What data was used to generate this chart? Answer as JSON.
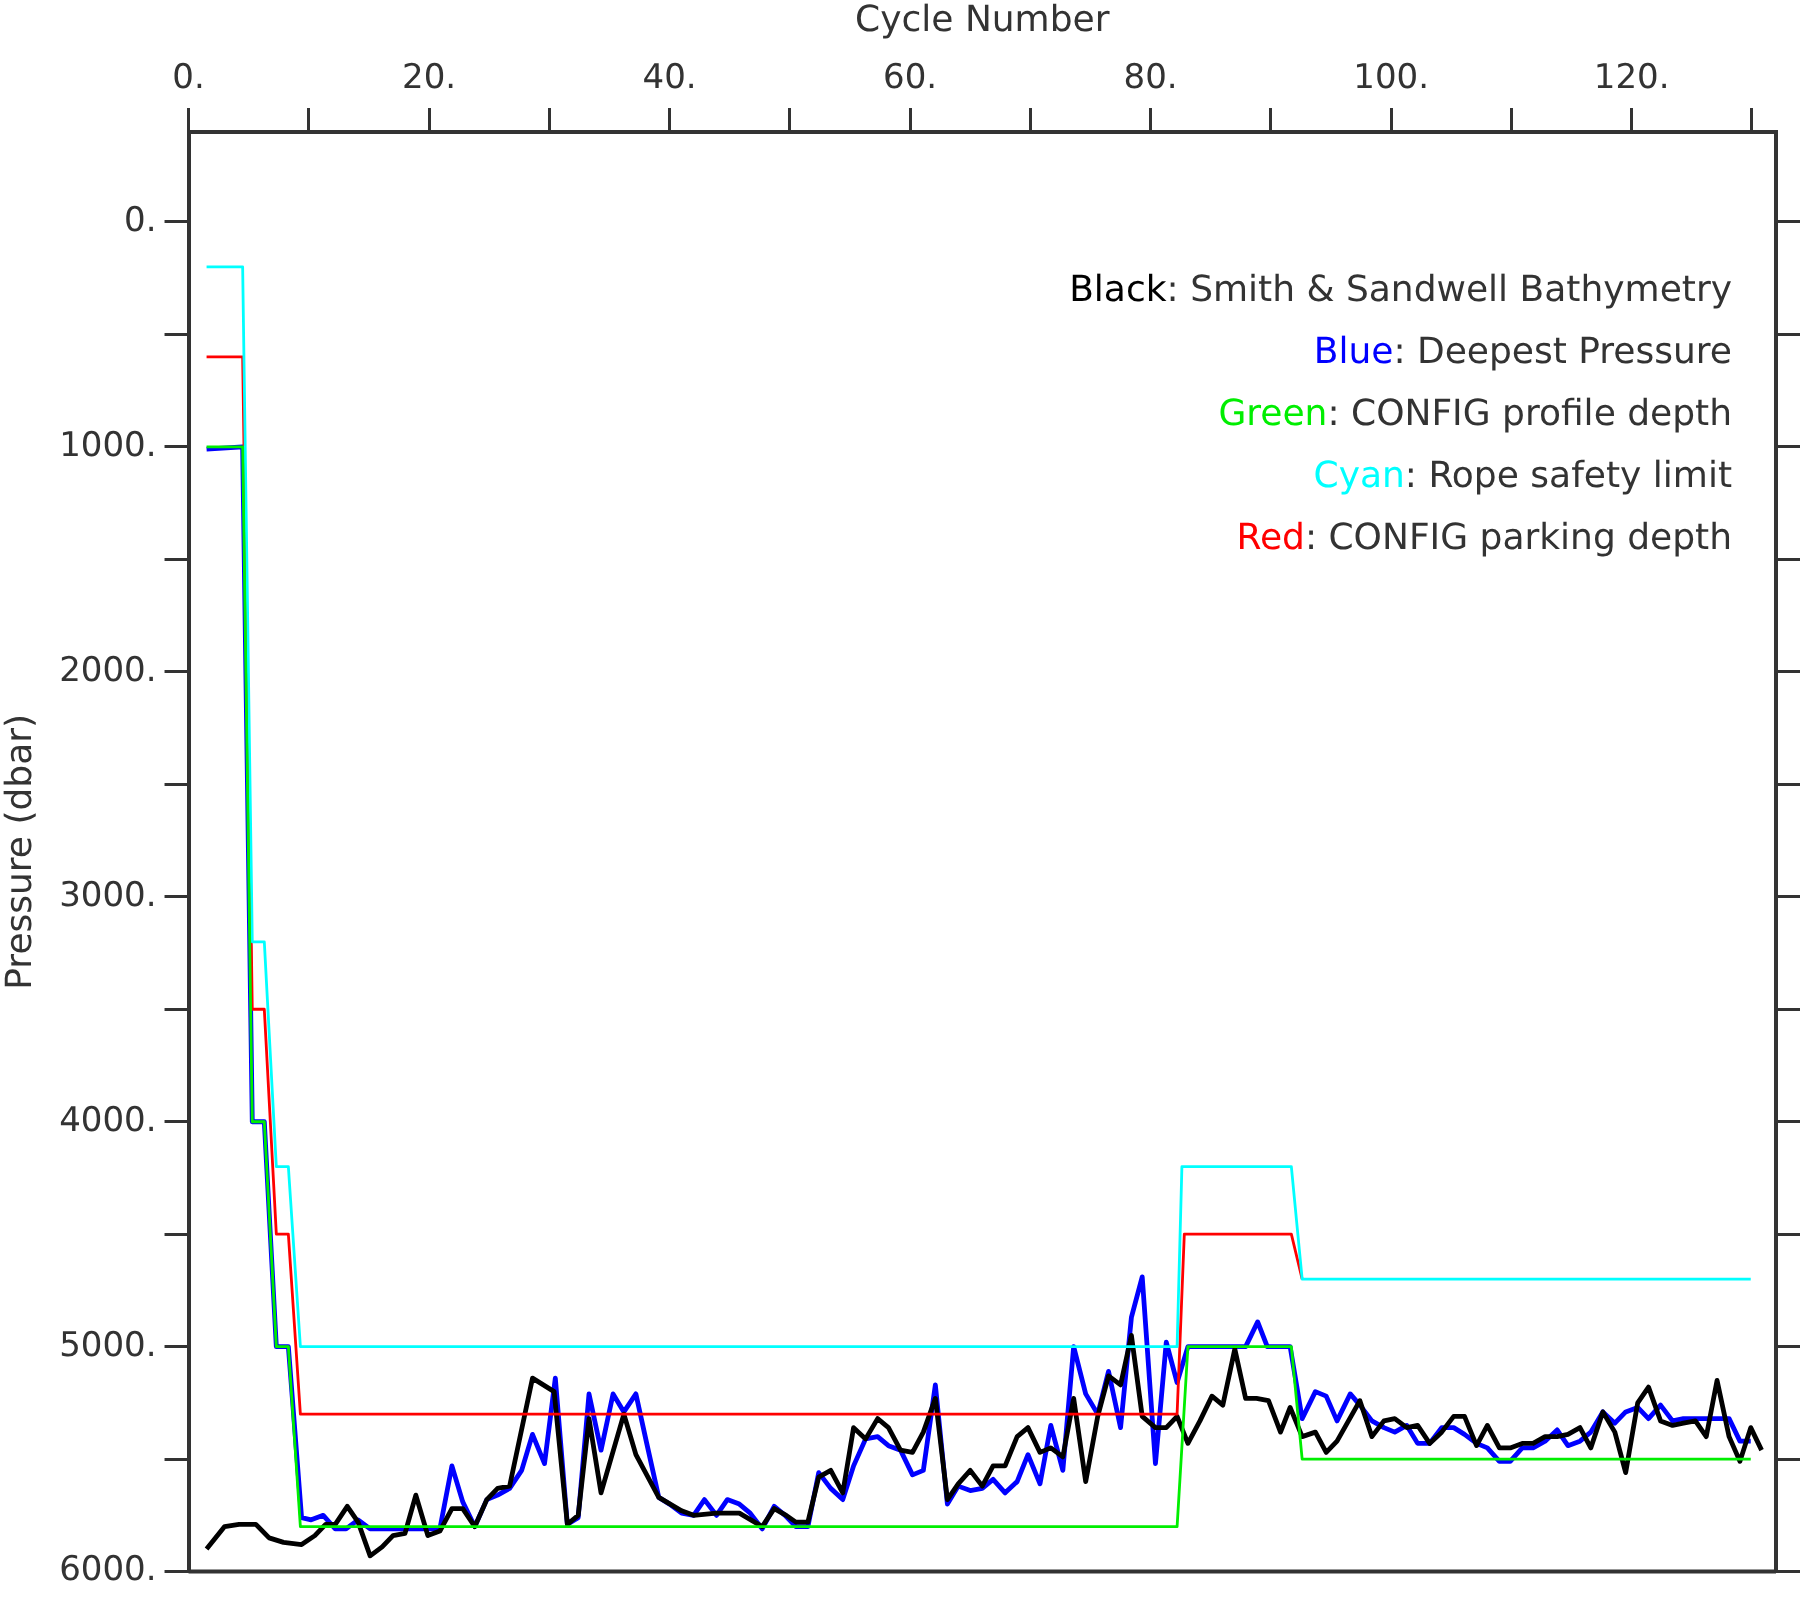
{
  "chart_data": {
    "type": "line",
    "xlabel": "Cycle Number",
    "ylabel": "Pressure (dbar)",
    "xlim": [
      0,
      132
    ],
    "ylim": [
      6000,
      -400
    ],
    "xticks": [
      {
        "value": 0,
        "label": "0."
      },
      {
        "value": 10,
        "label": null
      },
      {
        "value": 20,
        "label": "20."
      },
      {
        "value": 30,
        "label": null
      },
      {
        "value": 40,
        "label": "40."
      },
      {
        "value": 50,
        "label": null
      },
      {
        "value": 60,
        "label": "60."
      },
      {
        "value": 70,
        "label": null
      },
      {
        "value": 80,
        "label": "80."
      },
      {
        "value": 90,
        "label": null
      },
      {
        "value": 100,
        "label": "100."
      },
      {
        "value": 110,
        "label": null
      },
      {
        "value": 120,
        "label": "120."
      },
      {
        "value": 130,
        "label": null
      }
    ],
    "yticks": [
      {
        "value": 0,
        "label": "0."
      },
      {
        "value": 500,
        "label": null
      },
      {
        "value": 1000,
        "label": "1000."
      },
      {
        "value": 1500,
        "label": null
      },
      {
        "value": 2000,
        "label": "2000."
      },
      {
        "value": 2500,
        "label": null
      },
      {
        "value": 3000,
        "label": "3000."
      },
      {
        "value": 3500,
        "label": null
      },
      {
        "value": 4000,
        "label": "4000."
      },
      {
        "value": 4500,
        "label": null
      },
      {
        "value": 5000,
        "label": "5000."
      },
      {
        "value": 5500,
        "label": null
      },
      {
        "value": 6000,
        "label": "6000."
      }
    ],
    "grid": false,
    "legend": "top right",
    "series": [
      {
        "name": "Black: Smith & Sandwell Bathymetry",
        "color": "#000000",
        "x": [
          1.5,
          3,
          4.2,
          5.6,
          6.7,
          7.9,
          9.4,
          10.5,
          11.4,
          12.2,
          13.2,
          14.1,
          15.1,
          16.1,
          17.0,
          18.0,
          18.9,
          19.9,
          20.9,
          21.9,
          22.8,
          23.8,
          24.8,
          25.7,
          26.7,
          28.6,
          30.4,
          31.5,
          32.4,
          33.3,
          34.3,
          36.2,
          37.2,
          39.1,
          41.0,
          42.0,
          43.9,
          45.8,
          47.7,
          48.7,
          49.7,
          50.5,
          51.5,
          52.4,
          53.4,
          54.4,
          55.3,
          56.3,
          57.3,
          58.2,
          59.2,
          60.2,
          61.1,
          62.1,
          63.1,
          64.0,
          65.0,
          66.0,
          66.9,
          67.9,
          68.9,
          69.8,
          70.8,
          71.7,
          72.7,
          73.6,
          74.6,
          75.6,
          76.5,
          77.5,
          78.4,
          79.3,
          80.4,
          81.3,
          82.2,
          83.1,
          84.1,
          85.1,
          86.0,
          87.0,
          87.9,
          88.8,
          89.8,
          90.8,
          91.6,
          92.6,
          93.7,
          94.6,
          95.5,
          97.4,
          98.4,
          99.4,
          100.3,
          101.3,
          102.2,
          103.2,
          104.2,
          105.2,
          106.1,
          107.1,
          108.0,
          109.0,
          109.9,
          110.9,
          111.8,
          112.8,
          113.8,
          114.7,
          115.7,
          116.6,
          117.6,
          118.6,
          119.5,
          120.5,
          121.4,
          122.4,
          123.4,
          124.3,
          125.3,
          126.2,
          127.1,
          128.1,
          129.0,
          129.9,
          130.8
        ],
        "values": [
          5900,
          5800,
          5790,
          5790,
          5850,
          5870,
          5880,
          5840,
          5790,
          5790,
          5710,
          5780,
          5930,
          5890,
          5840,
          5830,
          5660,
          5840,
          5820,
          5720,
          5720,
          5800,
          5680,
          5630,
          5620,
          5140,
          5200,
          5790,
          5750,
          5320,
          5650,
          5300,
          5480,
          5670,
          5730,
          5750,
          5740,
          5740,
          5800,
          5720,
          5750,
          5780,
          5780,
          5580,
          5550,
          5650,
          5360,
          5410,
          5320,
          5360,
          5460,
          5470,
          5380,
          5230,
          5680,
          5610,
          5550,
          5620,
          5530,
          5530,
          5400,
          5360,
          5470,
          5450,
          5490,
          5230,
          5600,
          5310,
          5130,
          5170,
          4950,
          5310,
          5360,
          5360,
          5310,
          5430,
          5330,
          5220,
          5260,
          5010,
          5230,
          5230,
          5240,
          5380,
          5270,
          5400,
          5380,
          5470,
          5420,
          5240,
          5400,
          5330,
          5320,
          5360,
          5350,
          5430,
          5380,
          5310,
          5310,
          5440,
          5350,
          5450,
          5450,
          5430,
          5430,
          5400,
          5400,
          5390,
          5360,
          5450,
          5290,
          5380,
          5560,
          5250,
          5180,
          5330,
          5350,
          5340,
          5330,
          5400,
          5150,
          5400,
          5510,
          5360,
          5460
        ]
      },
      {
        "name": "Blue: Deepest Pressure",
        "color": "#0000ff",
        "x": [
          1.5,
          4.5,
          5.3,
          6.3,
          7.3,
          8.3,
          9.4,
          10.2,
          11.2,
          12.2,
          13.1,
          14.1,
          15.1,
          20.9,
          21.9,
          22.8,
          23.8,
          24.8,
          25.7,
          26.7,
          27.7,
          28.6,
          29.6,
          30.5,
          31.5,
          32.4,
          33.3,
          34.3,
          35.3,
          36.2,
          37.2,
          38.1,
          39.1,
          40.0,
          41.0,
          42.0,
          42.9,
          43.9,
          44.8,
          45.8,
          46.7,
          47.7,
          48.7,
          49.6,
          50.5,
          51.5,
          52.4,
          53.4,
          54.4,
          55.3,
          56.3,
          57.3,
          58.2,
          59.2,
          60.2,
          61.1,
          62.1,
          63.1,
          64.0,
          65.0,
          66.0,
          66.9,
          67.9,
          68.9,
          69.8,
          70.8,
          71.7,
          72.7,
          73.6,
          74.6,
          75.6,
          76.5,
          77.5,
          78.4,
          79.3,
          80.4,
          81.3,
          82.2,
          83.1,
          87.9,
          88.9,
          89.7,
          91.6,
          92.6,
          93.7,
          94.6,
          95.5,
          96.6,
          97.4,
          98.4,
          99.4,
          100.3,
          101.3,
          102.2,
          103.2,
          104.2,
          105.2,
          106.1,
          107.1,
          108.0,
          109.0,
          109.9,
          110.9,
          111.8,
          112.8,
          113.8,
          114.7,
          115.7,
          116.6,
          117.6,
          118.6,
          119.5,
          120.5,
          121.4,
          122.4,
          123.4,
          124.3,
          128.1,
          129.0,
          129.9
        ],
        "values": [
          1010,
          1000,
          4000,
          4000,
          5000,
          5000,
          5760,
          5770,
          5750,
          5810,
          5810,
          5770,
          5810,
          5810,
          5530,
          5690,
          5800,
          5680,
          5660,
          5630,
          5550,
          5390,
          5520,
          5140,
          5790,
          5760,
          5210,
          5460,
          5210,
          5290,
          5210,
          5430,
          5670,
          5700,
          5740,
          5750,
          5680,
          5750,
          5680,
          5700,
          5740,
          5810,
          5710,
          5750,
          5800,
          5800,
          5560,
          5630,
          5680,
          5530,
          5410,
          5400,
          5440,
          5460,
          5570,
          5550,
          5170,
          5700,
          5620,
          5640,
          5630,
          5590,
          5650,
          5600,
          5480,
          5610,
          5350,
          5550,
          5000,
          5210,
          5300,
          5110,
          5360,
          4870,
          4690,
          5520,
          4980,
          5160,
          5000,
          5000,
          4890,
          5000,
          5000,
          5320,
          5200,
          5220,
          5330,
          5210,
          5260,
          5330,
          5360,
          5380,
          5350,
          5430,
          5430,
          5360,
          5360,
          5390,
          5430,
          5450,
          5510,
          5510,
          5450,
          5450,
          5420,
          5370,
          5440,
          5420,
          5380,
          5290,
          5340,
          5290,
          5270,
          5320,
          5260,
          5330,
          5320,
          5320,
          5420,
          5420
        ]
      },
      {
        "name": "Green: CONFIG profile depth",
        "color": "#00ee00",
        "x": [
          1.5,
          4.5,
          5.3,
          6.3,
          7.3,
          8.3,
          9.3,
          82.2,
          83.1,
          91.7,
          92.6,
          129.9
        ],
        "values": [
          1000,
          1000,
          4000,
          4000,
          5000,
          5000,
          5800,
          5800,
          5000,
          5000,
          5500,
          5500
        ]
      },
      {
        "name": "Cyan: Rope safety limit",
        "color": "#00ffff",
        "x": [
          1.5,
          4.5,
          5.3,
          6.3,
          7.3,
          8.3,
          9.3,
          82.2,
          82.6,
          91.7,
          92.6,
          129.9
        ],
        "values": [
          200,
          200,
          3200,
          3200,
          4200,
          4200,
          5000,
          5000,
          4200,
          4200,
          4700,
          4700
        ]
      },
      {
        "name": "Red: CONFIG parking depth",
        "color": "#ff0000",
        "x": [
          1.5,
          4.5,
          5.3,
          6.3,
          7.3,
          8.3,
          9.3,
          82.2,
          82.8,
          91.7,
          92.6
        ],
        "values": [
          600,
          600,
          3500,
          3500,
          4500,
          4500,
          5300,
          5300,
          4500,
          4500,
          4700
        ]
      }
    ]
  }
}
